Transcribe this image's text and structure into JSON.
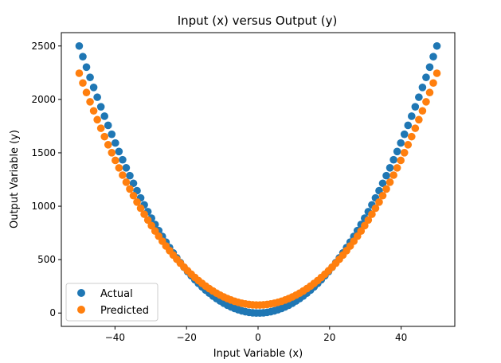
{
  "chart_data": {
    "type": "scatter",
    "title": "Input (x) versus Output (y)",
    "xlabel": "Input Variable (x)",
    "ylabel": "Output Variable (y)",
    "xlim": [
      -55,
      55
    ],
    "ylim": [
      -125,
      2625
    ],
    "xticks": [
      -40,
      -20,
      0,
      20,
      40
    ],
    "yticks": [
      0,
      500,
      1000,
      1500,
      2000,
      2500
    ],
    "xtick_labels": [
      "−40",
      "−20",
      "0",
      "20",
      "40"
    ],
    "ytick_labels": [
      "0",
      "500",
      "1000",
      "1500",
      "2000",
      "2500"
    ],
    "grid": false,
    "legend_position": "lower-left",
    "x_range": [
      -50,
      50
    ],
    "n_points": 100,
    "series": [
      {
        "name": "Actual",
        "color": "#1f77b4",
        "model": "quadratic",
        "coefficients": [
          0,
          0,
          1
        ]
      },
      {
        "name": "Predicted",
        "color": "#ff7f0e",
        "model": "quartic",
        "coefficients": [
          75,
          0,
          0.82,
          0,
          1.92e-05
        ]
      }
    ]
  }
}
